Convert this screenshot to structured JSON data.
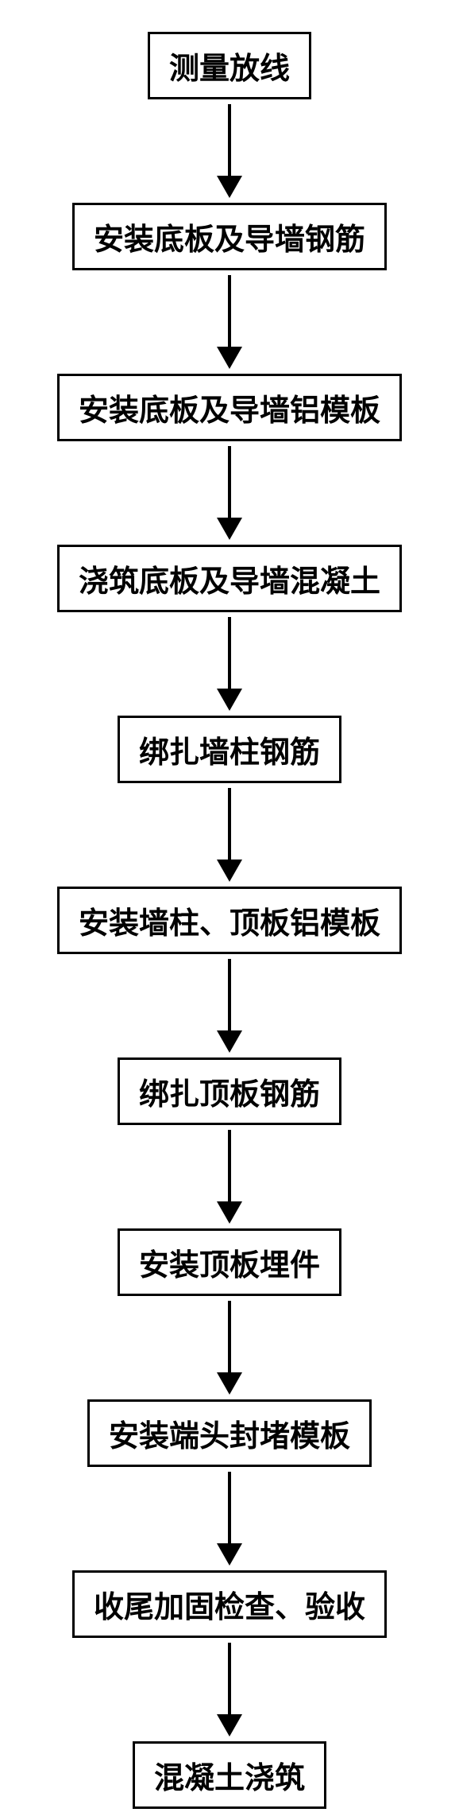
{
  "flowchart": {
    "type": "flowchart",
    "direction": "vertical",
    "background_color": "#ffffff",
    "node_border_color": "#000000",
    "node_border_width": 3,
    "node_background_color": "#ffffff",
    "node_text_color": "#000000",
    "node_font_size": 38,
    "node_font_weight": "bold",
    "arrow_color": "#000000",
    "arrow_line_width": 4,
    "arrow_head_width": 32,
    "arrow_head_height": 28,
    "nodes": [
      {
        "id": "n1",
        "label": "测量放线"
      },
      {
        "id": "n2",
        "label": "安装底板及导墙钢筋"
      },
      {
        "id": "n3",
        "label": "安装底板及导墙铝模板"
      },
      {
        "id": "n4",
        "label": "浇筑底板及导墙混凝土"
      },
      {
        "id": "n5",
        "label": "绑扎墙柱钢筋"
      },
      {
        "id": "n6",
        "label": "安装墙柱、顶板铝模板"
      },
      {
        "id": "n7",
        "label": "绑扎顶板钢筋"
      },
      {
        "id": "n8",
        "label": "安装顶板埋件"
      },
      {
        "id": "n9",
        "label": "安装端头封堵模板"
      },
      {
        "id": "n10",
        "label": "收尾加固检查、验收"
      },
      {
        "id": "n11",
        "label": "混凝土浇筑"
      }
    ],
    "edges": [
      {
        "from": "n1",
        "to": "n2"
      },
      {
        "from": "n2",
        "to": "n3"
      },
      {
        "from": "n3",
        "to": "n4"
      },
      {
        "from": "n4",
        "to": "n5"
      },
      {
        "from": "n5",
        "to": "n6"
      },
      {
        "from": "n6",
        "to": "n7"
      },
      {
        "from": "n7",
        "to": "n8"
      },
      {
        "from": "n8",
        "to": "n9"
      },
      {
        "from": "n9",
        "to": "n10"
      },
      {
        "from": "n10",
        "to": "n11"
      }
    ]
  }
}
